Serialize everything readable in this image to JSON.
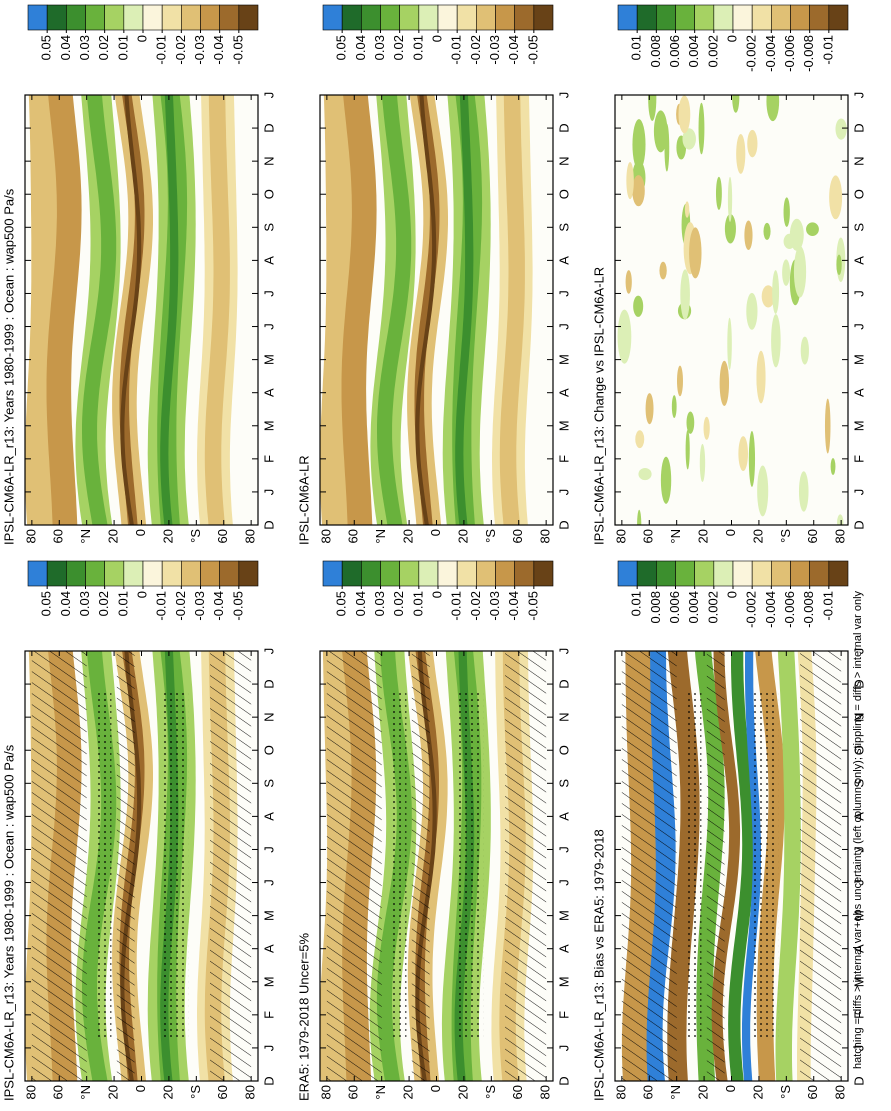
{
  "chart_data": [
    {
      "type": "contour",
      "title": "IPSL-CM6A-LR_r13: Years 1980-1999 : Ocean : wap500 Pa/s",
      "categories": [
        "D",
        "J",
        "F",
        "M",
        "A",
        "M",
        "J",
        "J",
        "A",
        "S",
        "O",
        "N",
        "D",
        "J"
      ],
      "ylim": [
        -85,
        85
      ],
      "yticks": [
        80,
        60,
        {
          "value": 40,
          "label": "°N"
        },
        20,
        0,
        {
          "value": -20,
          "label": "20"
        },
        {
          "value": -40,
          "label": "°S"
        },
        {
          "value": -60,
          "label": "60"
        },
        {
          "value": -80,
          "label": "80"
        }
      ],
      "colorbar": {
        "ticks": [
          0.05,
          0.04,
          0.03,
          0.02,
          0.01,
          0,
          -0.01,
          -0.02,
          -0.03,
          -0.04,
          -0.05
        ],
        "colors": [
          "#2f80d8",
          "#1f6b2a",
          "#3c8f2e",
          "#69b23c",
          "#a6d263",
          "#dcefb6",
          "#fbf5dc",
          "#f1e1a6",
          "#e0c075",
          "#c7974a",
          "#9c6a2c",
          "#684217"
        ]
      },
      "hatching": false
    },
    {
      "type": "contour",
      "title": "IPSL-CM6A-LR",
      "categories": [
        "D",
        "J",
        "F",
        "M",
        "A",
        "M",
        "J",
        "J",
        "A",
        "S",
        "O",
        "N",
        "D",
        "J"
      ],
      "ylim": [
        -85,
        85
      ],
      "yticks": [
        80,
        60,
        {
          "value": 40,
          "label": "°N"
        },
        20,
        0,
        {
          "value": -20,
          "label": "20"
        },
        {
          "value": -40,
          "label": "°S"
        },
        {
          "value": -60,
          "label": "60"
        },
        {
          "value": -80,
          "label": "80"
        }
      ],
      "colorbar": {
        "ticks": [
          0.05,
          0.04,
          0.03,
          0.02,
          0.01,
          0,
          -0.01,
          -0.02,
          -0.03,
          -0.04,
          -0.05
        ],
        "colors": [
          "#2f80d8",
          "#1f6b2a",
          "#3c8f2e",
          "#69b23c",
          "#a6d263",
          "#dcefb6",
          "#fbf5dc",
          "#f1e1a6",
          "#e0c075",
          "#c7974a",
          "#9c6a2c",
          "#684217"
        ]
      },
      "hatching": false
    },
    {
      "type": "contour",
      "title": "IPSL-CM6A-LR_r13: Change vs IPSL-CM6A-LR",
      "categories": [
        "D",
        "J",
        "F",
        "M",
        "A",
        "M",
        "J",
        "J",
        "A",
        "S",
        "O",
        "N",
        "D",
        "J"
      ],
      "ylim": [
        -85,
        85
      ],
      "yticks": [
        80,
        60,
        {
          "value": 40,
          "label": "°N"
        },
        20,
        0,
        {
          "value": -20,
          "label": "20"
        },
        {
          "value": -40,
          "label": "°S"
        },
        {
          "value": -60,
          "label": "60"
        },
        {
          "value": -80,
          "label": "80"
        }
      ],
      "colorbar": {
        "ticks": [
          0.01,
          0.008,
          0.006,
          0.004,
          0.002,
          0,
          -0.002,
          -0.004,
          -0.006,
          -0.008,
          -0.01
        ],
        "colors": [
          "#2f80d8",
          "#1f6b2a",
          "#3c8f2e",
          "#69b23c",
          "#a6d263",
          "#dcefb6",
          "#fbf5dc",
          "#f1e1a6",
          "#e0c075",
          "#c7974a",
          "#9c6a2c",
          "#684217"
        ]
      },
      "hatching": false
    },
    {
      "type": "contour",
      "title": "IPSL-CM6A-LR_r13: Years 1980-1999 : Ocean : wap500 Pa/s",
      "categories": [
        "D",
        "J",
        "F",
        "M",
        "A",
        "M",
        "J",
        "J",
        "A",
        "S",
        "O",
        "N",
        "D",
        "J"
      ],
      "ylim": [
        -85,
        85
      ],
      "yticks": [
        80,
        60,
        {
          "value": 40,
          "label": "°N"
        },
        20,
        0,
        {
          "value": -20,
          "label": "20"
        },
        {
          "value": -40,
          "label": "°S"
        },
        {
          "value": -60,
          "label": "60"
        },
        {
          "value": -80,
          "label": "80"
        }
      ],
      "colorbar": {
        "ticks": [
          0.05,
          0.04,
          0.03,
          0.02,
          0.01,
          0,
          -0.01,
          -0.02,
          -0.03,
          -0.04,
          -0.05
        ],
        "colors": [
          "#2f80d8",
          "#1f6b2a",
          "#3c8f2e",
          "#69b23c",
          "#a6d263",
          "#dcefb6",
          "#fbf5dc",
          "#f1e1a6",
          "#e0c075",
          "#c7974a",
          "#9c6a2c",
          "#684217"
        ]
      },
      "hatching": true
    },
    {
      "type": "contour",
      "title": "ERA5: 1979-2018 Uncer=5%",
      "categories": [
        "D",
        "J",
        "F",
        "M",
        "A",
        "M",
        "J",
        "J",
        "A",
        "S",
        "O",
        "N",
        "D",
        "J"
      ],
      "ylim": [
        -85,
        85
      ],
      "yticks": [
        80,
        60,
        {
          "value": 40,
          "label": "°N"
        },
        20,
        0,
        {
          "value": -20,
          "label": "20"
        },
        {
          "value": -40,
          "label": "°S"
        },
        {
          "value": -60,
          "label": "60"
        },
        {
          "value": -80,
          "label": "80"
        }
      ],
      "colorbar": {
        "ticks": [
          0.05,
          0.04,
          0.03,
          0.02,
          0.01,
          0,
          -0.01,
          -0.02,
          -0.03,
          -0.04,
          -0.05
        ],
        "colors": [
          "#2f80d8",
          "#1f6b2a",
          "#3c8f2e",
          "#69b23c",
          "#a6d263",
          "#dcefb6",
          "#fbf5dc",
          "#f1e1a6",
          "#e0c075",
          "#c7974a",
          "#9c6a2c",
          "#684217"
        ]
      },
      "hatching": true
    },
    {
      "type": "contour",
      "title": "IPSL-CM6A-LR_r13: Bias vs ERA5: 1979-2018",
      "categories": [
        "D",
        "J",
        "F",
        "M",
        "A",
        "M",
        "J",
        "J",
        "A",
        "S",
        "O",
        "N",
        "D",
        "J"
      ],
      "ylim": [
        -85,
        85
      ],
      "yticks": [
        80,
        60,
        {
          "value": 40,
          "label": "°N"
        },
        20,
        0,
        {
          "value": -20,
          "label": "20"
        },
        {
          "value": -40,
          "label": "°S"
        },
        {
          "value": -60,
          "label": "60"
        },
        {
          "value": -80,
          "label": "80"
        }
      ],
      "colorbar": {
        "ticks": [
          0.01,
          0.008,
          0.006,
          0.004,
          0.002,
          0,
          -0.002,
          -0.004,
          -0.006,
          -0.008,
          -0.01
        ],
        "colors": [
          "#2f80d8",
          "#1f6b2a",
          "#3c8f2e",
          "#69b23c",
          "#a6d263",
          "#dcefb6",
          "#fbf5dc",
          "#f1e1a6",
          "#e0c075",
          "#c7974a",
          "#9c6a2c",
          "#684217"
        ]
      },
      "hatching": true
    }
  ],
  "caption": "hatching = diffs > internal var+obs uncertainty (left column only); stippling = diffs > internal var only"
}
